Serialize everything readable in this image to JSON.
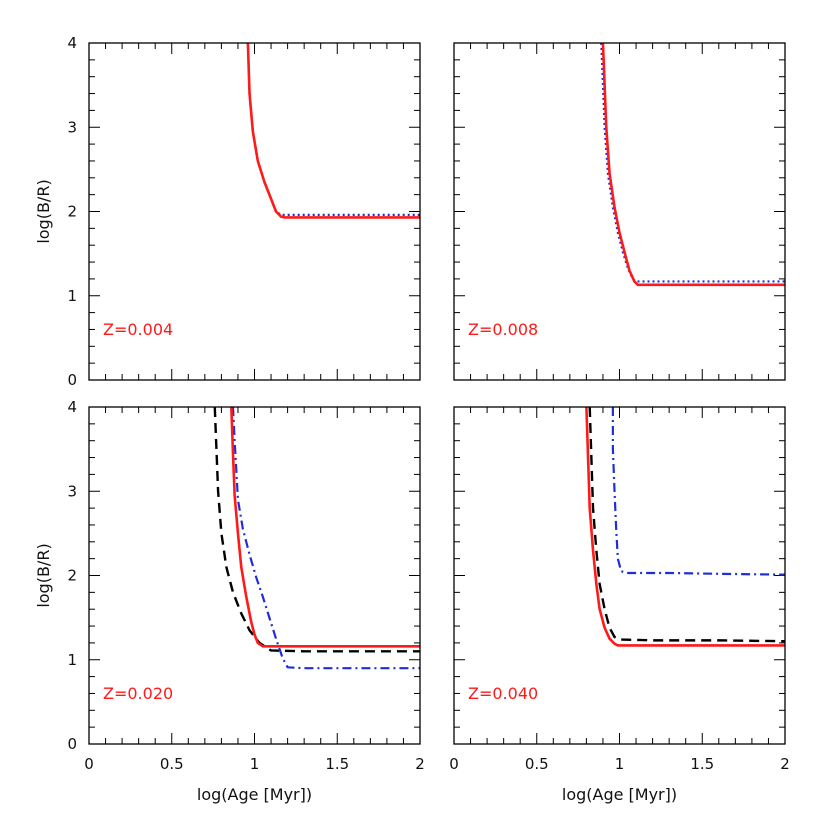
{
  "chart_data": {
    "type": "line",
    "panel_grid": "2x2",
    "xlabel": "log(Age [Myr])",
    "ylabel": "log(B/R)",
    "xlim": [
      0,
      2
    ],
    "ylim": [
      0,
      4
    ],
    "x_ticks": [
      "0",
      "0.5",
      "1",
      "1.5",
      "2"
    ],
    "y_ticks": [
      "0",
      "1",
      "2",
      "3",
      "4"
    ],
    "annotation_color": "#ff1a1a",
    "panels": [
      {
        "annotation": "Z=0.004",
        "series": [
          {
            "name": "blue dotted",
            "color": "#1f2fd6",
            "style": "dotted",
            "x": [
              0.96,
              0.97,
              0.99,
              1.02,
              1.06,
              1.1,
              1.13,
              1.16,
              1.3,
              1.6,
              2.0
            ],
            "y": [
              4.0,
              3.4,
              2.95,
              2.6,
              2.35,
              2.15,
              2.0,
              1.96,
              1.96,
              1.96,
              1.96
            ]
          },
          {
            "name": "red solid",
            "color": "#ff1a1a",
            "style": "solid",
            "x": [
              0.96,
              0.97,
              0.99,
              1.02,
              1.06,
              1.1,
              1.13,
              1.16,
              1.18,
              1.3,
              1.6,
              2.0
            ],
            "y": [
              4.0,
              3.4,
              2.95,
              2.6,
              2.35,
              2.15,
              2.0,
              1.94,
              1.93,
              1.93,
              1.93,
              1.93
            ]
          }
        ]
      },
      {
        "annotation": "Z=0.008",
        "series": [
          {
            "name": "blue dotted",
            "color": "#1f2fd6",
            "style": "dotted",
            "x": [
              0.89,
              0.9,
              0.91,
              0.93,
              0.96,
              0.99,
              1.02,
              1.05,
              1.08,
              1.1,
              1.3,
              1.6,
              2.0
            ],
            "y": [
              4.0,
              3.5,
              3.0,
              2.45,
              2.05,
              1.75,
              1.52,
              1.33,
              1.2,
              1.17,
              1.17,
              1.17,
              1.17
            ]
          },
          {
            "name": "red solid",
            "color": "#ff1a1a",
            "style": "solid",
            "x": [
              0.9,
              0.91,
              0.92,
              0.94,
              0.97,
              1.0,
              1.03,
              1.06,
              1.09,
              1.11,
              1.3,
              1.6,
              2.0
            ],
            "y": [
              4.0,
              3.5,
              3.0,
              2.45,
              2.05,
              1.75,
              1.52,
              1.3,
              1.17,
              1.13,
              1.13,
              1.13,
              1.13
            ]
          }
        ]
      },
      {
        "annotation": "Z=0.020",
        "series": [
          {
            "name": "black dashed",
            "color": "#000000",
            "style": "dashed",
            "x": [
              0.76,
              0.77,
              0.78,
              0.8,
              0.83,
              0.87,
              0.92,
              0.97,
              1.03,
              1.1,
              1.3,
              1.6,
              2.0
            ],
            "y": [
              4.0,
              3.5,
              3.0,
              2.5,
              2.1,
              1.8,
              1.55,
              1.35,
              1.2,
              1.11,
              1.1,
              1.1,
              1.1
            ]
          },
          {
            "name": "blue dash-dot",
            "color": "#1f2fd6",
            "style": "dashdot",
            "x": [
              0.87,
              0.88,
              0.89,
              0.9,
              0.93,
              0.97,
              1.01,
              1.05,
              1.09,
              1.13,
              1.17,
              1.2,
              1.3,
              1.6,
              2.0
            ],
            "y": [
              4.0,
              3.6,
              3.25,
              2.9,
              2.55,
              2.25,
              1.98,
              1.75,
              1.5,
              1.25,
              1.02,
              0.91,
              0.9,
              0.9,
              0.9
            ]
          },
          {
            "name": "red solid",
            "color": "#ff1a1a",
            "style": "solid",
            "x": [
              0.86,
              0.87,
              0.88,
              0.9,
              0.92,
              0.95,
              0.98,
              1.0,
              1.02,
              1.05,
              1.1,
              1.3,
              1.6,
              2.0
            ],
            "y": [
              4.0,
              3.45,
              2.95,
              2.5,
              2.1,
              1.75,
              1.45,
              1.3,
              1.2,
              1.16,
              1.16,
              1.16,
              1.16,
              1.16
            ]
          }
        ]
      },
      {
        "annotation": "Z=0.040",
        "series": [
          {
            "name": "blue dash-dot",
            "color": "#1f2fd6",
            "style": "dashdot",
            "x": [
              0.96,
              0.96,
              0.97,
              0.98,
              0.99,
              1.01,
              1.05,
              1.3,
              1.6,
              2.0
            ],
            "y": [
              4.0,
              3.5,
              3.0,
              2.55,
              2.2,
              2.05,
              2.03,
              2.03,
              2.02,
              2.01
            ]
          },
          {
            "name": "black dashed",
            "color": "#000000",
            "style": "dashed",
            "x": [
              0.82,
              0.83,
              0.84,
              0.86,
              0.88,
              0.91,
              0.94,
              0.97,
              1.0,
              1.2,
              1.6,
              2.0
            ],
            "y": [
              4.0,
              3.4,
              2.8,
              2.3,
              1.9,
              1.6,
              1.38,
              1.27,
              1.24,
              1.23,
              1.23,
              1.22
            ]
          },
          {
            "name": "red solid",
            "color": "#ff1a1a",
            "style": "solid",
            "x": [
              0.8,
              0.81,
              0.82,
              0.84,
              0.86,
              0.88,
              0.91,
              0.94,
              0.97,
              0.99,
              1.2,
              1.6,
              2.0
            ],
            "y": [
              4.0,
              3.4,
              2.8,
              2.3,
              1.9,
              1.6,
              1.38,
              1.25,
              1.19,
              1.17,
              1.17,
              1.17,
              1.17
            ]
          }
        ]
      }
    ]
  }
}
